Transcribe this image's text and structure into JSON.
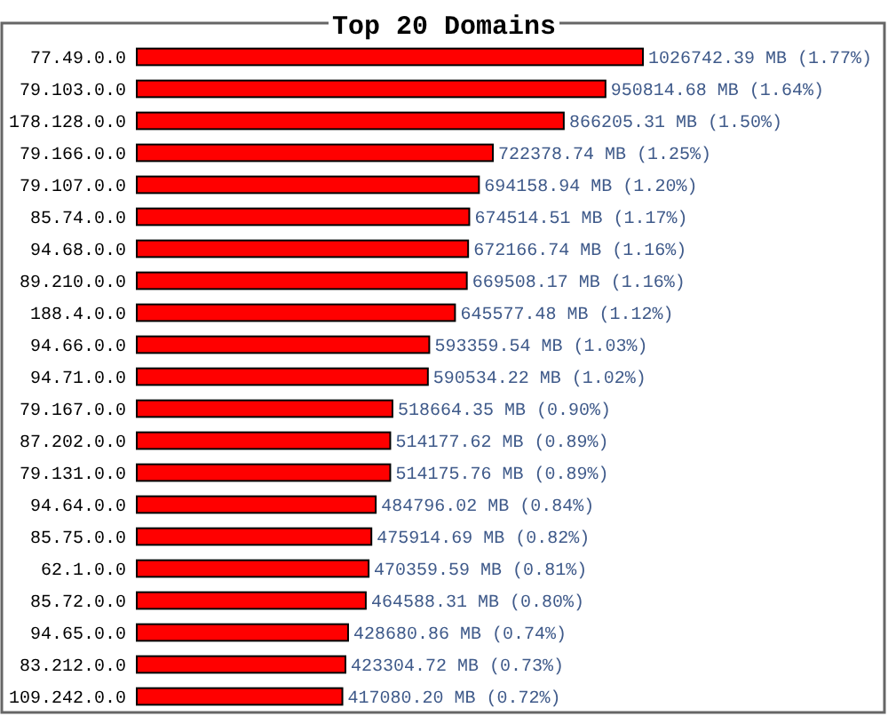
{
  "chart_data": {
    "type": "bar",
    "orientation": "horizontal",
    "title": "Top 20 Domains",
    "categories": [
      "77.49.0.0",
      "79.103.0.0",
      "178.128.0.0",
      "79.166.0.0",
      "79.107.0.0",
      "85.74.0.0",
      "94.68.0.0",
      "89.210.0.0",
      "188.4.0.0",
      "94.66.0.0",
      "94.71.0.0",
      "79.167.0.0",
      "87.202.0.0",
      "79.131.0.0",
      "94.64.0.0",
      "85.75.0.0",
      "62.1.0.0",
      "85.72.0.0",
      "94.65.0.0",
      "83.212.0.0",
      "109.242.0.0"
    ],
    "values": [
      1026742.39,
      950814.68,
      866205.31,
      722378.74,
      694158.94,
      674514.51,
      672166.74,
      669508.17,
      645577.48,
      593359.54,
      590534.22,
      518664.35,
      514177.62,
      514175.76,
      484796.02,
      475914.69,
      470359.59,
      464588.31,
      428680.86,
      423304.72,
      417080.2
    ],
    "value_labels": [
      "1026742.39 MB (1.77%)",
      "950814.68 MB (1.64%)",
      "866205.31 MB (1.50%)",
      "722378.74 MB (1.25%)",
      "694158.94 MB (1.20%)",
      "674514.51 MB (1.17%)",
      "672166.74 MB (1.16%)",
      "669508.17 MB (1.16%)",
      "645577.48 MB (1.12%)",
      "593359.54 MB (1.03%)",
      "590534.22 MB (1.02%)",
      "518664.35 MB (0.90%)",
      "514177.62 MB (0.89%)",
      "514175.76 MB (0.89%)",
      "484796.02 MB (0.84%)",
      "475914.69 MB (0.82%)",
      "470359.59 MB (0.81%)",
      "464588.31 MB (0.80%)",
      "428680.86 MB (0.74%)",
      "423304.72 MB (0.73%)",
      "417080.20 MB (0.72%)"
    ],
    "color": "#ff0000"
  }
}
